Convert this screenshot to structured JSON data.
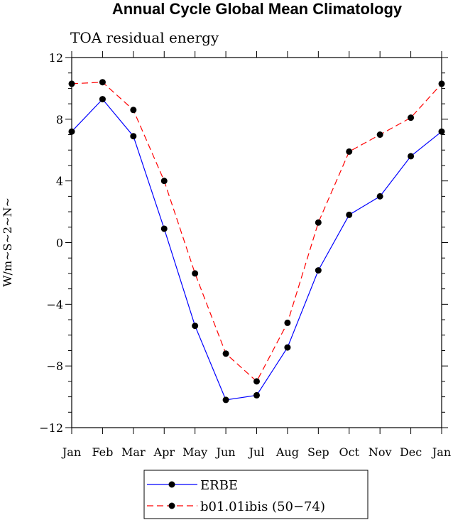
{
  "chart_data": {
    "type": "line",
    "title": "Annual Cycle Global Mean Climatology",
    "subtitle": "TOA residual energy",
    "xlabel": "",
    "ylabel": "W/m~S~2~N~",
    "ylim": [
      -12,
      12
    ],
    "yticks": [
      -12,
      -8,
      -4,
      0,
      4,
      8,
      12
    ],
    "ytick_labels": [
      "−12",
      "−8",
      "−4",
      "0",
      "4",
      "8",
      "12"
    ],
    "categories": [
      "Jan",
      "Feb",
      "Mar",
      "Apr",
      "May",
      "Jun",
      "Jul",
      "Aug",
      "Sep",
      "Oct",
      "Nov",
      "Dec",
      "Jan"
    ],
    "grid": false,
    "legend_position": "bottom-center",
    "series": [
      {
        "name": "ERBE",
        "color": "#0000ff",
        "dash": "solid",
        "values": [
          7.2,
          9.3,
          6.9,
          0.9,
          -5.4,
          -10.2,
          -9.9,
          -6.8,
          -1.8,
          1.8,
          3.0,
          5.6,
          7.2
        ]
      },
      {
        "name": "b01.01ibis (50−74)",
        "color": "#ff0000",
        "dash": "dashed",
        "values": [
          10.3,
          10.4,
          8.6,
          4.0,
          -2.0,
          -7.2,
          -9.0,
          -5.2,
          1.3,
          5.9,
          7.0,
          8.1,
          10.3
        ]
      }
    ]
  }
}
